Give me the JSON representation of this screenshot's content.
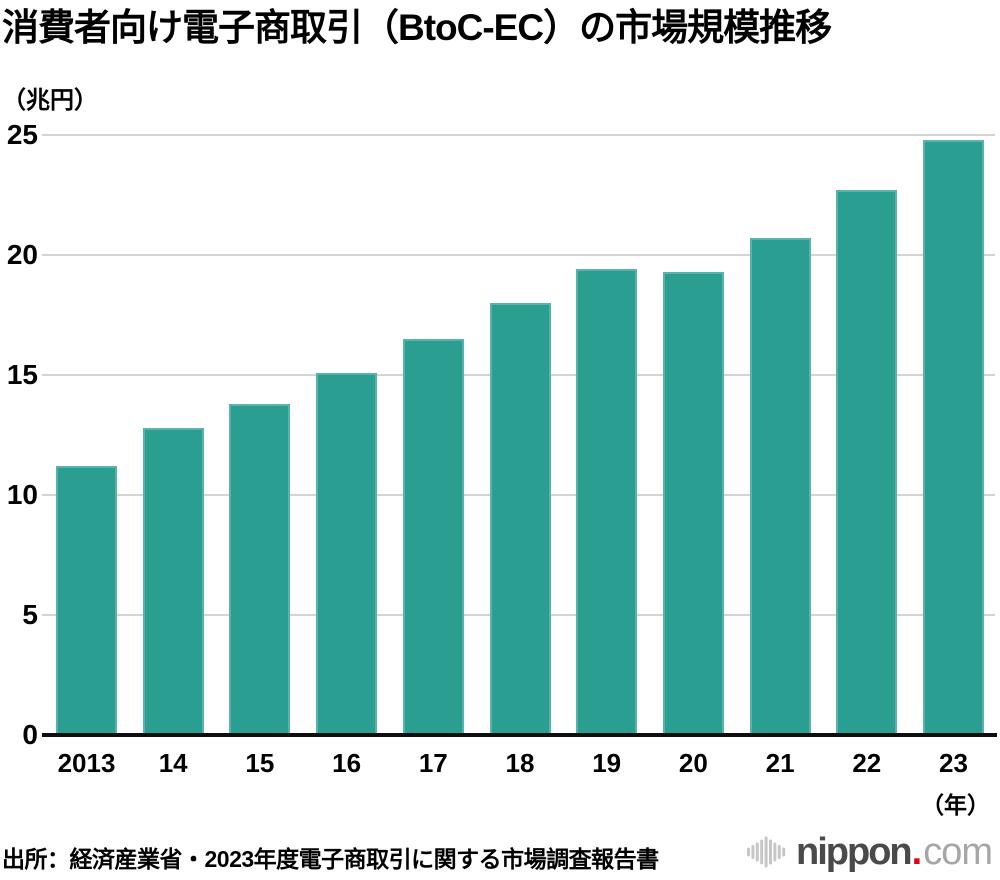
{
  "title": "消費者向け電子商取引（BtoC-EC）の市場規模推移",
  "unit_label": "（兆円）",
  "year_suffix": "（年）",
  "source": "出所：経済産業省・2023年度電子商取引に関する市場調査報告書",
  "logo": {
    "brand": "nippon",
    "dot": ".",
    "tld": "com"
  },
  "colors": {
    "bar": "#2b9e92",
    "grid": "#d4d4d4",
    "axis": "#0f0f0f",
    "logo_brand": "#4a4a4a",
    "logo_tld": "#a6a6a6",
    "logo_dot": "#e60012",
    "logo_wave": "#c6c6c6"
  },
  "chart_data": {
    "type": "bar",
    "title": "消費者向け電子商取引（BtoC-EC）の市場規模推移",
    "categories": [
      "2013",
      "14",
      "15",
      "16",
      "17",
      "18",
      "19",
      "20",
      "21",
      "22",
      "23"
    ],
    "values": [
      11.2,
      12.8,
      13.8,
      15.1,
      16.5,
      18.0,
      19.4,
      19.3,
      20.7,
      22.7,
      24.8
    ],
    "xlabel": "年",
    "ylabel": "兆円",
    "ylim": [
      0,
      25
    ],
    "yticks": [
      0,
      5,
      10,
      15,
      20,
      25
    ],
    "grid": true,
    "legend": false
  }
}
